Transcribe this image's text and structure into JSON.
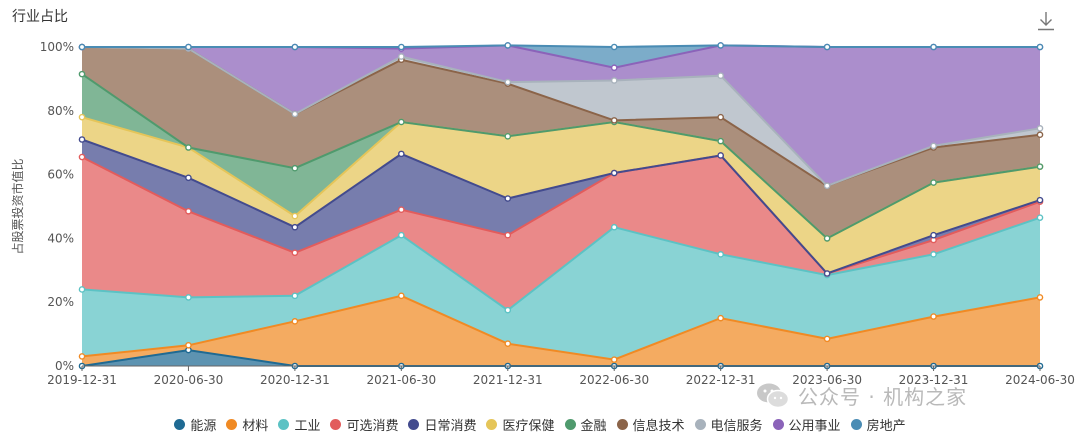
{
  "header": {
    "title": "行业占比",
    "download_icon": "download-icon"
  },
  "watermark": {
    "text": "公众号 · 机构之家",
    "icon": "wechat-icon"
  },
  "chart_data": {
    "type": "area",
    "stacked": true,
    "normalized": true,
    "x": [
      "2019-12-31",
      "2020-06-30",
      "2020-12-31",
      "2021-06-30",
      "2021-12-31",
      "2022-06-30",
      "2022-12-31",
      "2023-06-30",
      "2023-12-31",
      "2024-06-30"
    ],
    "ylabel": "占股票投资市值比",
    "ylim": [
      0,
      100
    ],
    "yticks": [
      "0%",
      "20%",
      "40%",
      "60%",
      "80%",
      "100%"
    ],
    "grid": false,
    "legend_position": "bottom",
    "series": [
      {
        "name": "能源",
        "color": "#1f6a93",
        "values": [
          0,
          5,
          0,
          0,
          0,
          0,
          0,
          0,
          0,
          0
        ]
      },
      {
        "name": "材料",
        "color": "#f08a24",
        "values": [
          3,
          1.5,
          14,
          22,
          7,
          2,
          15,
          8.5,
          15.5,
          21.5
        ]
      },
      {
        "name": "工业",
        "color": "#5cc2c4",
        "values": [
          21,
          15,
          8,
          19,
          10.5,
          41.5,
          20,
          20,
          19.5,
          25
        ]
      },
      {
        "name": "可选消费",
        "color": "#e25c5c",
        "values": [
          41.5,
          27,
          13.5,
          8,
          23.5,
          17,
          31,
          0.5,
          4.5,
          5
        ]
      },
      {
        "name": "日常消费",
        "color": "#434b8e",
        "values": [
          5.5,
          10.5,
          8,
          17.5,
          11.5,
          0,
          0,
          0,
          1.5,
          0.5
        ]
      },
      {
        "name": "医疗保健",
        "color": "#e5c559",
        "values": [
          7,
          9.5,
          3.5,
          10,
          19.5,
          16,
          4.5,
          11,
          16.5,
          10.5
        ]
      },
      {
        "name": "金融",
        "color": "#4f9a6d",
        "values": [
          13.5,
          0,
          15,
          0,
          0,
          0,
          0,
          0,
          0,
          0
        ]
      },
      {
        "name": "信息技术",
        "color": "#8b6449",
        "values": [
          8.5,
          31,
          17,
          19.5,
          16.5,
          0.5,
          7.5,
          16.5,
          11,
          10
        ]
      },
      {
        "name": "电信服务",
        "color": "#a8b2bc",
        "values": [
          0,
          0,
          0,
          1,
          0.5,
          12.5,
          13,
          0,
          0.5,
          2
        ]
      },
      {
        "name": "公用事业",
        "color": "#8b63b9",
        "values": [
          0,
          0.5,
          21,
          2.5,
          11.5,
          4,
          9.5,
          43.5,
          31,
          25.5
        ]
      },
      {
        "name": "房地产",
        "color": "#4a8cb4",
        "values": [
          0,
          0,
          0,
          0.5,
          0,
          6.5,
          0,
          0,
          0,
          0
        ]
      }
    ]
  }
}
